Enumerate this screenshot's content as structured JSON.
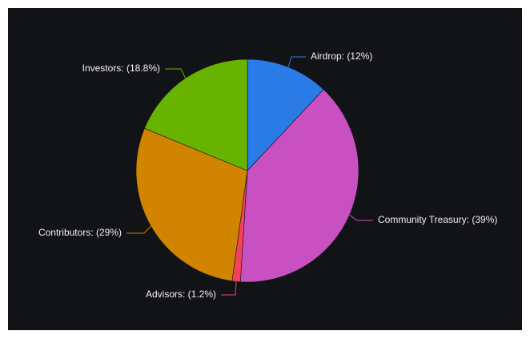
{
  "chart_data": {
    "type": "pie",
    "categories": [
      "Airdrop: (12%)",
      "Community Treasury: (39%)",
      "Advisors: (1.2%)",
      "Contributors: (29%)",
      "Investors: (18.8%)"
    ],
    "values": [
      12,
      39,
      1.2,
      29,
      18.8
    ],
    "colors": [
      "#2b7be6",
      "#c950c0",
      "#f3435c",
      "#d08400",
      "#67b300"
    ]
  }
}
